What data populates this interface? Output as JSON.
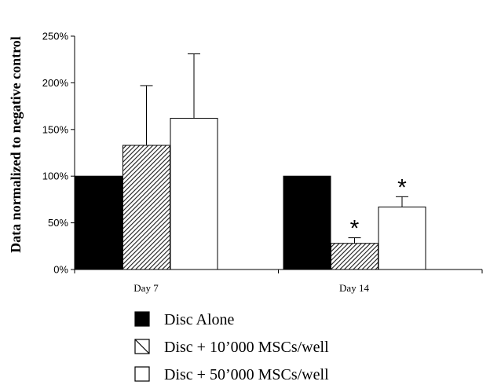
{
  "chart_data": {
    "type": "bar",
    "title": "",
    "xlabel": "",
    "ylabel": "Data normalized to negative control",
    "ylim": [
      0,
      250
    ],
    "ytick_values": [
      0,
      50,
      100,
      150,
      200,
      250
    ],
    "ytick_labels": [
      "0%",
      "50%",
      "100%",
      "150%",
      "200%",
      "250%"
    ],
    "categories": [
      "Day 7",
      "Day 14"
    ],
    "series": [
      {
        "name": "Disc Alone",
        "style": "solid-black",
        "values": [
          100,
          100
        ],
        "error_upper": [
          0,
          0
        ]
      },
      {
        "name": "Disc + 10’000 MSCs/well",
        "style": "hatched",
        "values": [
          133,
          28
        ],
        "error_upper": [
          197,
          34
        ]
      },
      {
        "name": "Disc + 50’000 MSCs/well",
        "style": "white",
        "values": [
          162,
          67
        ],
        "error_upper": [
          231,
          78
        ]
      }
    ],
    "significance_marker": "*",
    "significance": [
      {
        "series": 1,
        "category": 1
      },
      {
        "series": 2,
        "category": 1
      }
    ],
    "grid": false,
    "legend_position": "bottom"
  }
}
